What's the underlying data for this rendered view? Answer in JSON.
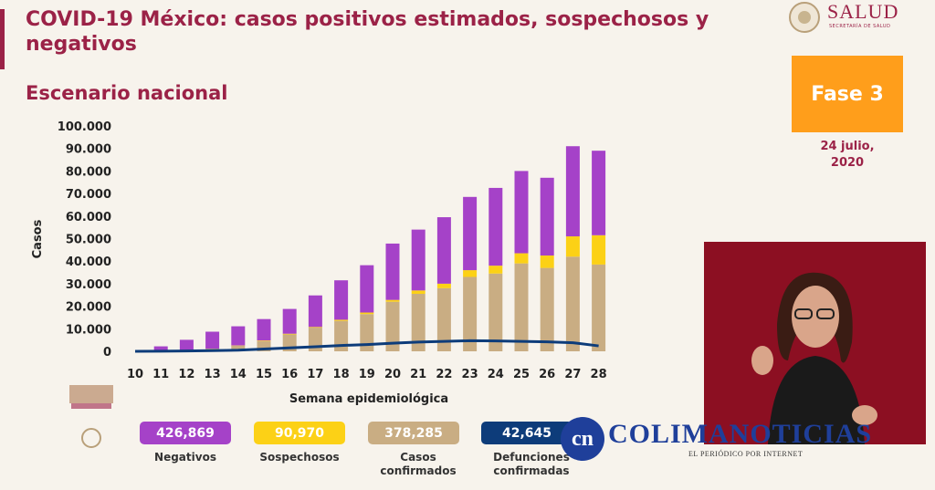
{
  "header": {
    "title": "COVID-19 México: casos positivos estimados, sospechosos y negativos",
    "subtitle": "Escenario nacional",
    "logo_text": "SALUD",
    "logo_subtext": "SECRETARÍA DE SALUD",
    "phase_label": "Fase 3",
    "date_line1": "24 julio,",
    "date_line2": "2020"
  },
  "colors": {
    "brand": "#9b2247",
    "negativos": "#a542c8",
    "sospechosos": "#fcd116",
    "confirmados": "#c9ad83",
    "defunciones": "#0d3c7a",
    "phase": "#ff9e1b"
  },
  "legend": [
    {
      "value": "426,869",
      "label_line1": "Negativos",
      "label_line2": "",
      "color": "#a542c8"
    },
    {
      "value": "90,970",
      "label_line1": "Sospechosos",
      "label_line2": "",
      "color": "#fcd116"
    },
    {
      "value": "378,285",
      "label_line1": "Casos",
      "label_line2": "confirmados",
      "color": "#c9ad83"
    },
    {
      "value": "42,645",
      "label_line1": "Defunciones",
      "label_line2": "confirmadas",
      "color": "#0d3c7a"
    }
  ],
  "watermark": {
    "badge": "cn",
    "name": "COLIMANOTICIAS",
    "tagline": "EL PERIÓDICO POR INTERNET"
  },
  "chart_data": {
    "type": "bar",
    "stacked": true,
    "xlabel": "Semana epidemiológica",
    "ylabel": "Casos",
    "ylim": [
      0,
      100000
    ],
    "yticks": [
      "0",
      "10.000",
      "20.000",
      "30.000",
      "40.000",
      "50.000",
      "60.000",
      "70.000",
      "80.000",
      "90.000",
      "100.000"
    ],
    "categories": [
      "10",
      "11",
      "12",
      "13",
      "14",
      "15",
      "16",
      "17",
      "18",
      "19",
      "20",
      "21",
      "22",
      "23",
      "24",
      "25",
      "26",
      "27",
      "28"
    ],
    "series": [
      {
        "name": "Casos confirmados",
        "color": "#c9ad83",
        "values": [
          0,
          200,
          600,
          1200,
          2500,
          4500,
          7500,
          10500,
          13500,
          16500,
          22000,
          25500,
          28000,
          33000,
          34500,
          39000,
          37000,
          42000,
          38500
        ]
      },
      {
        "name": "Sospechosos",
        "color": "#fcd116",
        "values": [
          0,
          0,
          0,
          0,
          100,
          300,
          300,
          300,
          500,
          700,
          800,
          1500,
          2000,
          3000,
          3500,
          4500,
          5500,
          9000,
          13000
        ]
      },
      {
        "name": "Negativos",
        "color": "#a542c8",
        "values": [
          0,
          2000,
          4500,
          7500,
          8500,
          9500,
          11000,
          14000,
          17500,
          21000,
          25000,
          27000,
          29500,
          32500,
          34500,
          36500,
          34500,
          40000,
          37500
        ]
      }
    ],
    "line": {
      "name": "Defunciones confirmadas",
      "color": "#0d3c7a",
      "values": [
        0,
        50,
        150,
        300,
        500,
        1000,
        1500,
        2000,
        2600,
        3000,
        3600,
        4100,
        4400,
        4700,
        4600,
        4400,
        4200,
        3800,
        2400
      ]
    }
  }
}
